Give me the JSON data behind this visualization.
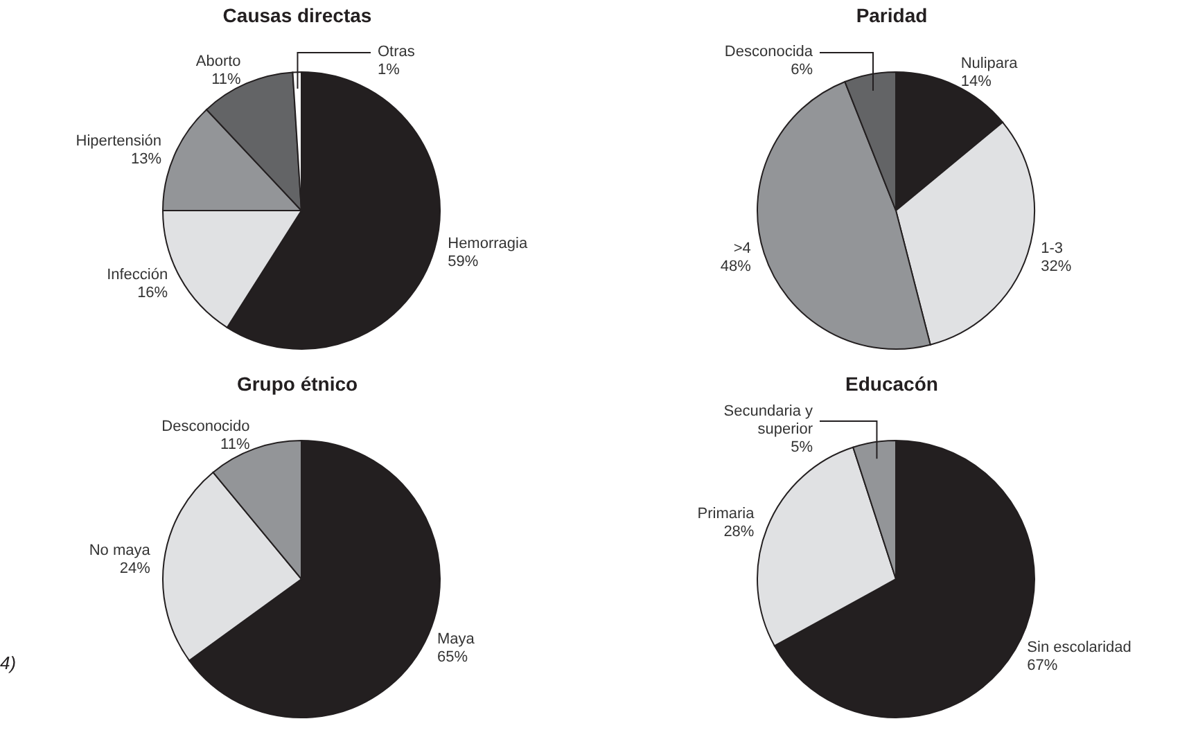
{
  "chart_data": [
    {
      "type": "pie",
      "title": "Causas directas",
      "categories": [
        "Hemorragia",
        "Infección",
        "Hipertensión",
        "Aborto",
        "Otras"
      ],
      "values": [
        59,
        16,
        13,
        11,
        1
      ],
      "value_labels": [
        "59%",
        "16%",
        "13%",
        "11%",
        "1%"
      ],
      "colors": [
        "#231f20",
        "#e0e1e3",
        "#939598",
        "#636466",
        "#ffffff"
      ]
    },
    {
      "type": "pie",
      "title": "Paridad",
      "categories": [
        "Nulipara",
        "1-3",
        ">4",
        "Desconocida"
      ],
      "values": [
        14,
        32,
        48,
        6
      ],
      "value_labels": [
        "14%",
        "32%",
        "48%",
        "6%"
      ],
      "colors": [
        "#231f20",
        "#e0e1e3",
        "#939598",
        "#636466"
      ]
    },
    {
      "type": "pie",
      "title": "Grupo étnico",
      "categories": [
        "Maya",
        "No maya",
        "Desconocido"
      ],
      "values": [
        65,
        24,
        11
      ],
      "value_labels": [
        "65%",
        "24%",
        "11%"
      ],
      "colors": [
        "#231f20",
        "#e0e1e3",
        "#939598"
      ],
      "annotations": [
        "4)"
      ]
    },
    {
      "type": "pie",
      "title": "Educacón",
      "categories": [
        "Sin escolaridad",
        "Primaria",
        "Secundaria y superior"
      ],
      "values": [
        67,
        28,
        5
      ],
      "value_labels": [
        "67%",
        "28%",
        "5%"
      ],
      "colors": [
        "#231f20",
        "#e0e1e3",
        "#939598"
      ]
    }
  ]
}
